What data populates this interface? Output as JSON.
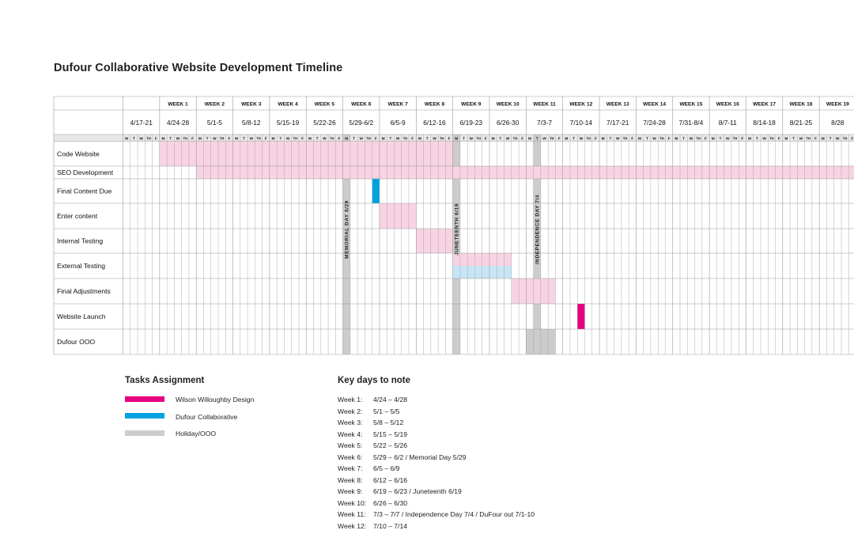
{
  "title": "Dufour Collaborative Website Development Timeline",
  "colors": {
    "wilson": "#e6007e",
    "wilson_light": "#f8d3e4",
    "dufour": "#00a3e0",
    "dufour_light": "#c7e5f5",
    "holiday": "#cccccc",
    "grid": "#9a9a9a",
    "header_band": "#e8e8e8"
  },
  "chart_data": {
    "type": "gantt",
    "title": "Dufour Collaborative Website Development Timeline",
    "week_labels": [
      "",
      "WEEK 1",
      "WEEK 2",
      "WEEK 3",
      "WEEK 4",
      "WEEK 5",
      "WEEK 6",
      "WEEK 7",
      "WEEK 8",
      "WEEK 9",
      "WEEK 10",
      "WEEK 11",
      "WEEK 12",
      "WEEK 13",
      "WEEK 14",
      "WEEK 15",
      "WEEK 16",
      "WEEK 17",
      "WEEK 18",
      "WEEK 19"
    ],
    "date_ranges": [
      "4/17-21",
      "4/24-28",
      "5/1-5",
      "5/8-12",
      "5/15-19",
      "5/22-26",
      "5/29-6/2",
      "6/5-9",
      "6/12-16",
      "6/19-23",
      "6/26-30",
      "7/3-7",
      "7/10-14",
      "7/17-21",
      "7/24-28",
      "7/31-8/4",
      "8/7-11",
      "8/14-18",
      "8/21-25",
      "8/28"
    ],
    "day_labels": [
      "M",
      "T",
      "W",
      "TH",
      "F"
    ],
    "tasks": [
      "Code Website",
      "SEO Development",
      "Final Content Due",
      "Enter content",
      "Internal Testing",
      "External Testing",
      "Final Adjustments",
      "Website Launch",
      "Dufour OOO"
    ],
    "bars": [
      {
        "task": 0,
        "start_day": 5,
        "end_day": 45,
        "owner": "wilson",
        "shade": "light",
        "lane": "full"
      },
      {
        "task": 1,
        "start_day": 10,
        "end_day": 100,
        "owner": "wilson",
        "shade": "light",
        "lane": "full"
      },
      {
        "task": 2,
        "start_day": 34,
        "end_day": 35,
        "owner": "dufour",
        "shade": "dark",
        "lane": "full"
      },
      {
        "task": 3,
        "start_day": 35,
        "end_day": 40,
        "owner": "wilson",
        "shade": "light",
        "lane": "full"
      },
      {
        "task": 4,
        "start_day": 40,
        "end_day": 45,
        "owner": "wilson",
        "shade": "light",
        "lane": "full"
      },
      {
        "task": 5,
        "start_day": 45,
        "end_day": 53,
        "owner": "wilson",
        "shade": "light",
        "lane": "top"
      },
      {
        "task": 5,
        "start_day": 45,
        "end_day": 53,
        "owner": "dufour",
        "shade": "light",
        "lane": "bottom"
      },
      {
        "task": 6,
        "start_day": 53,
        "end_day": 59,
        "owner": "wilson",
        "shade": "light",
        "lane": "full"
      },
      {
        "task": 7,
        "start_day": 62,
        "end_day": 63,
        "owner": "wilson",
        "shade": "dark",
        "lane": "full"
      },
      {
        "task": 8,
        "start_day": 55,
        "end_day": 59,
        "owner": "holiday",
        "shade": "dark",
        "lane": "full"
      }
    ],
    "holidays": [
      {
        "day": 30,
        "label": "MEMORIAL DAY  5/29"
      },
      {
        "day": 45,
        "label": "JUNETEENTH  6/19"
      },
      {
        "day": 56,
        "label": "INDEPENDENCE DAY  7/4"
      }
    ]
  },
  "legend": {
    "title": "Tasks Assignment",
    "items": [
      {
        "label": "Wilson Willoughby Design",
        "color": "#e6007e"
      },
      {
        "label": "Dufour Collaborative",
        "color": "#00a3e0"
      },
      {
        "label": "Holiday/OOO",
        "color": "#cccccc"
      }
    ]
  },
  "key_days": {
    "title": "Key days to note",
    "items": [
      {
        "week": "Week 1:",
        "text": "4/24 – 4/28"
      },
      {
        "week": "Week 2:",
        "text": "5/1 – 5/5"
      },
      {
        "week": "Week 3:",
        "text": "5/8 – 5/12"
      },
      {
        "week": "Week 4:",
        "text": "5/15 – 5/19"
      },
      {
        "week": "Week 5:",
        "text": "5/22 – 5/26"
      },
      {
        "week": "Week 6:",
        "text": "5/29 – 6/2 / Memorial Day 5/29"
      },
      {
        "week": "Week 7:",
        "text": "6/5 – 6/9"
      },
      {
        "week": "Week 8:",
        "text": "6/12 – 6/16"
      },
      {
        "week": "Week 9:",
        "text": "6/19 – 6/23 / Juneteenth 6/19"
      },
      {
        "week": "Week 10:",
        "text": "6/26 – 6/30"
      },
      {
        "week": "Week 11:",
        "text": "7/3 – 7/7 / Independence Day 7/4 / DuFour out 7/1-10"
      },
      {
        "week": "Week 12:",
        "text": "7/10 – 7/14"
      }
    ]
  }
}
